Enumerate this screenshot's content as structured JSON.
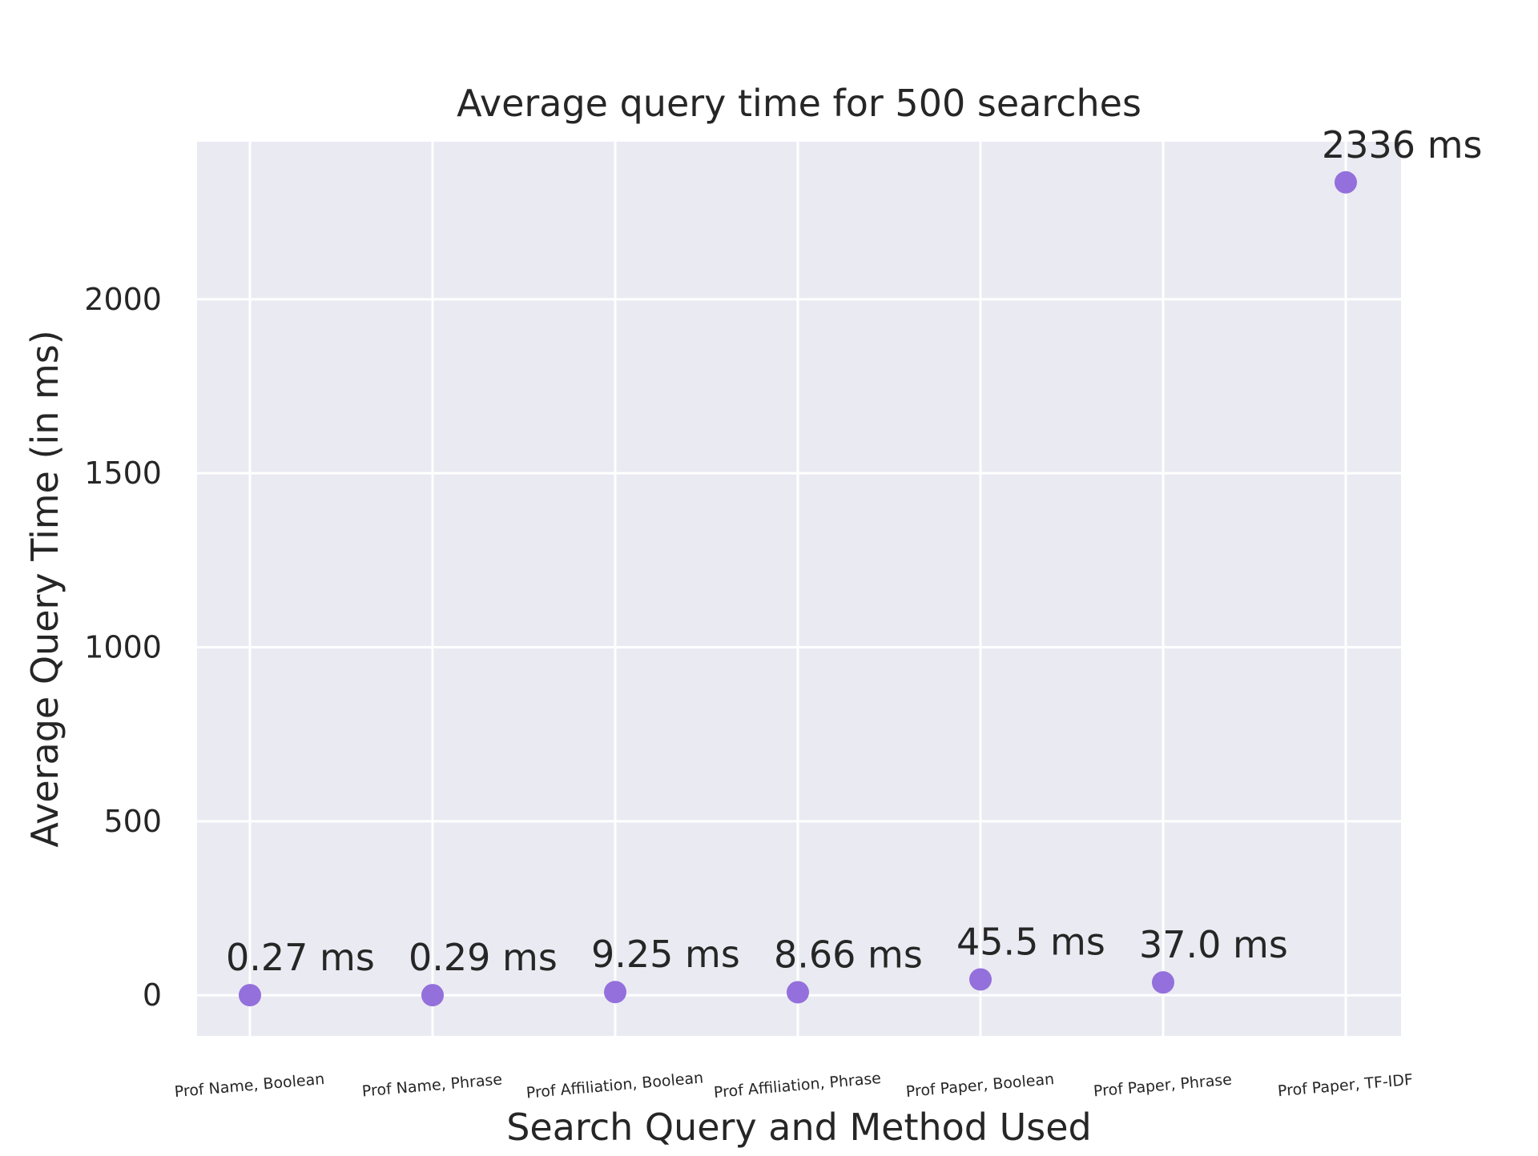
{
  "chart_data": {
    "type": "scatter",
    "title": "Average query time for 500 searches",
    "xlabel": "Search Query and Method Used",
    "ylabel": "Average Query Time (in ms)",
    "categories": [
      "Prof Name, Boolean",
      "Prof Name, Phrase",
      "Prof Affiliation, Boolean",
      "Prof Affiliation, Phrase",
      "Prof Paper, Boolean",
      "Prof Paper, Phrase",
      "Prof Paper, TF-IDF"
    ],
    "values": [
      0.27,
      0.29,
      9.25,
      8.66,
      45.5,
      37.0,
      2336
    ],
    "data_labels": [
      "0.27 ms",
      "0.29 ms",
      "9.25 ms",
      "8.66 ms",
      "45.5 ms",
      "37.0 ms",
      "2336 ms"
    ],
    "yticks": [
      0,
      500,
      1000,
      1500,
      2000
    ],
    "ylim": [
      -116.8,
      2452.8
    ],
    "grid": true,
    "legend": "none",
    "colors": {
      "point": "#9370db",
      "plot_background": "#eaeaf2",
      "grid": "#ffffff",
      "text": "#262626"
    }
  }
}
